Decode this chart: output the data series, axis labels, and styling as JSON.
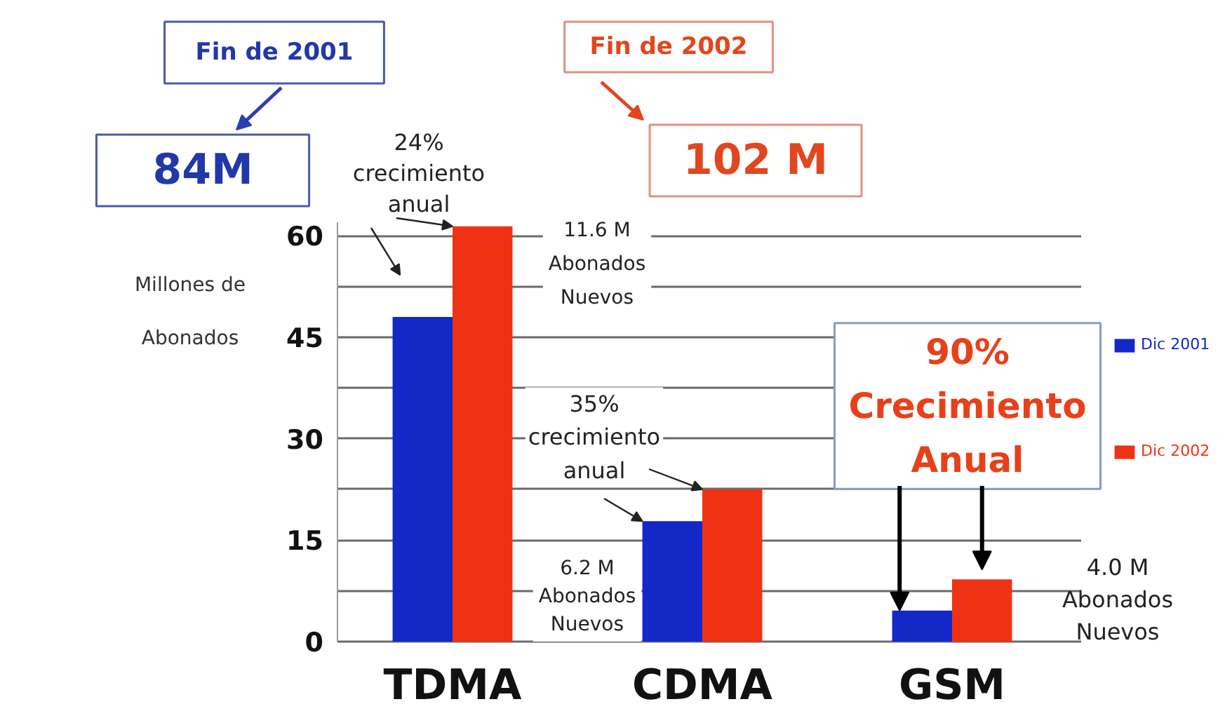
{
  "chart_data": {
    "type": "bar",
    "categories": [
      "TDMA",
      "CDMA",
      "GSM"
    ],
    "series": [
      {
        "name": "Dic 2001",
        "color": "#1428c8",
        "values": [
          48,
          17.8,
          4.6
        ]
      },
      {
        "name": "Dic 2002",
        "color": "#f03214",
        "values": [
          61.4,
          22.5,
          9.2
        ]
      }
    ],
    "ylabel": "Millones de\nAbonados",
    "ylim": [
      0,
      62
    ],
    "yticks": [
      0,
      {
        "value": 7.5,
        "label": null
      },
      15,
      {
        "value": 22.5,
        "label": null
      },
      30,
      {
        "value": 37.5,
        "label": null
      },
      45,
      {
        "value": 52.5,
        "label": null
      },
      60
    ],
    "grid": "y",
    "legend": "right",
    "annotations": [
      "Fin de 2001",
      "84M",
      "Fin de 2002",
      "102 M",
      {
        "text": "24%\ncrecimiento\nanual",
        "x": "TDMA",
        "y": 61.4
      },
      "11.6 M\nAbonados\nNuevos",
      {
        "text": "35%\ncrecimiento\nanual",
        "x": "CDMA",
        "y": 22.5
      },
      "6.2 M\nAbonados\nNuevos",
      {
        "text": "90%\nCrecimiento\nAnual",
        "x": "GSM",
        "y": 9.2
      },
      "4.0 M\nAbonados\nNuevos"
    ]
  }
}
